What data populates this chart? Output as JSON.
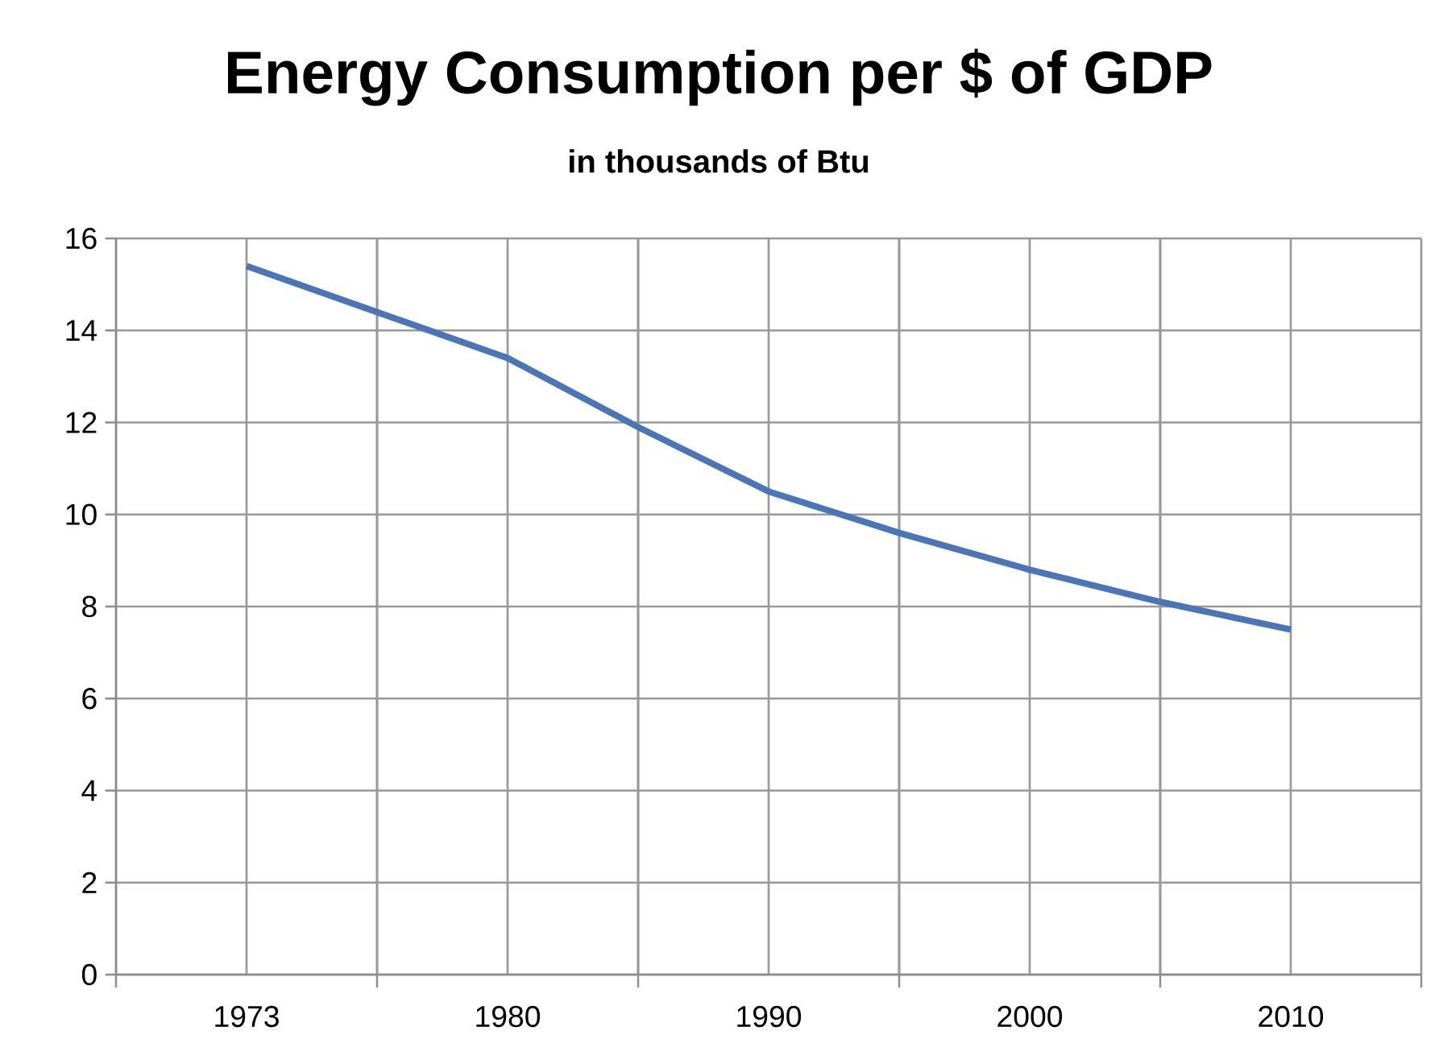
{
  "chart_data": {
    "type": "line",
    "title": "Energy Consumption per $ of GDP",
    "subtitle": "in thousands of Btu",
    "categories": [
      "1973",
      null,
      "1980",
      null,
      "1990",
      null,
      "2000",
      null,
      "2010"
    ],
    "series": [
      {
        "color": "#4a76b8",
        "values": [
          15.4,
          14.4,
          13.4,
          11.9,
          10.5,
          9.6,
          8.8,
          8.1,
          7.5
        ]
      }
    ],
    "ylim": [
      0,
      16
    ],
    "yticks": [
      0,
      2,
      4,
      6,
      8,
      10,
      12,
      14,
      16
    ],
    "grid": true,
    "marker": "none",
    "line_style": "solid"
  }
}
